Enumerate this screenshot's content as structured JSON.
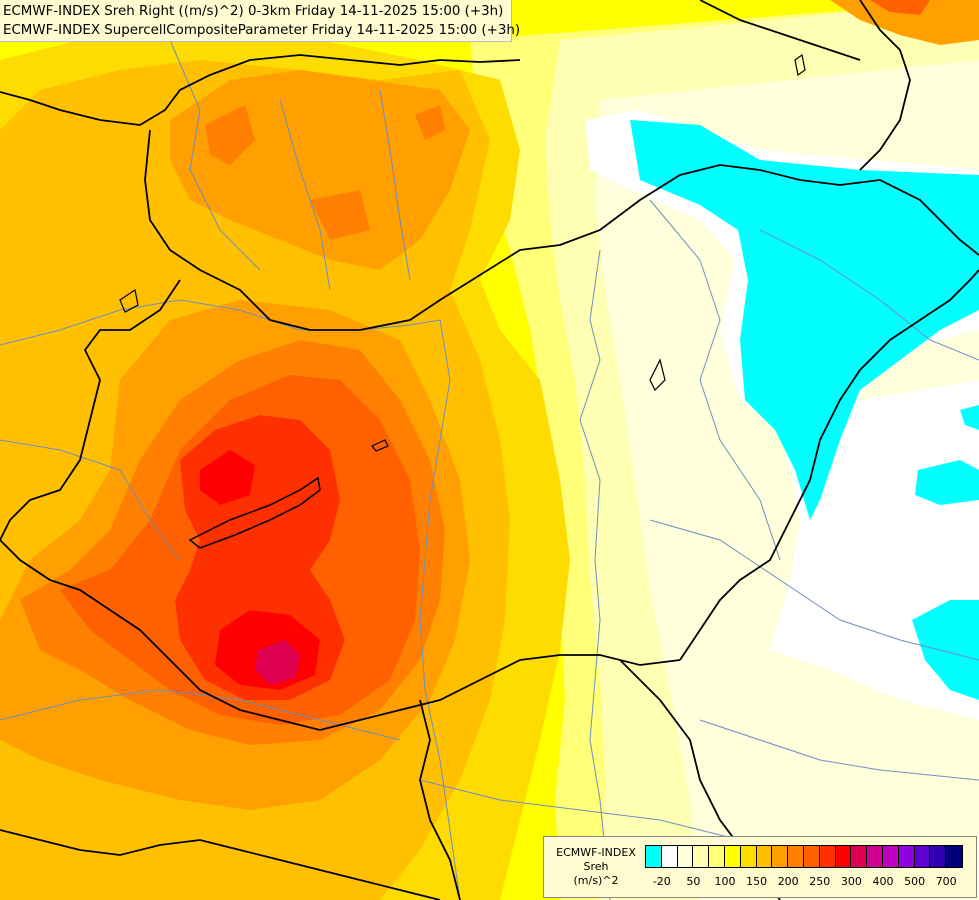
{
  "title": {
    "line1": "ECMWF-INDEX Sreh Right ((m/s)^2) 0-3km Friday 14-11-2025 15:00 (+3h)",
    "line2": "ECMWF-INDEX SupercellCompositeParameter Friday 14-11-2025 15:00 (+3h)"
  },
  "legend": {
    "source": "ECMWF-INDEX",
    "variable": "Sreh",
    "unit": "(m/s)^2",
    "colors": [
      "#00ffff",
      "#ffffff",
      "#ffffdc",
      "#ffffb4",
      "#ffff78",
      "#ffff00",
      "#ffdc00",
      "#ffc000",
      "#ffa000",
      "#ff8000",
      "#ff6000",
      "#ff3000",
      "#ff0000",
      "#e00050",
      "#d00090",
      "#c000c0",
      "#9000e0",
      "#6000d0",
      "#3000b0",
      "#00007a"
    ],
    "labels": [
      {
        "text": "-20",
        "index": 1
      },
      {
        "text": "50",
        "index": 3
      },
      {
        "text": "100",
        "index": 5
      },
      {
        "text": "150",
        "index": 7
      },
      {
        "text": "200",
        "index": 9
      },
      {
        "text": "250",
        "index": 11
      },
      {
        "text": "300",
        "index": 13
      },
      {
        "text": "400",
        "index": 15
      },
      {
        "text": "500",
        "index": 17
      },
      {
        "text": "700",
        "index": 19
      }
    ]
  },
  "field_colors": {
    "cyan": "#00ffff",
    "white": "#ffffff",
    "pale_cream": "#ffffdc",
    "cream": "#ffffb4",
    "light_yellow": "#ffff78",
    "yellow": "#ffff00",
    "gold": "#ffdc00",
    "amber": "#ffc000",
    "orange_light": "#ffa000",
    "orange": "#ff8000",
    "orange_dark": "#ff6000",
    "red_orange": "#ff3000",
    "red": "#ff0000",
    "crimson": "#e00050",
    "border": "#000000",
    "river": "#6d8fbf"
  }
}
